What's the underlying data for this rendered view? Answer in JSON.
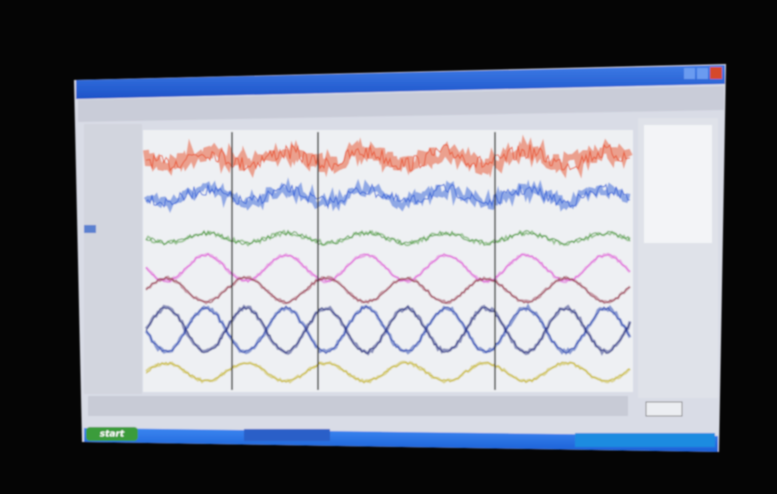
{
  "taskbar": {
    "start": "start"
  }
}
